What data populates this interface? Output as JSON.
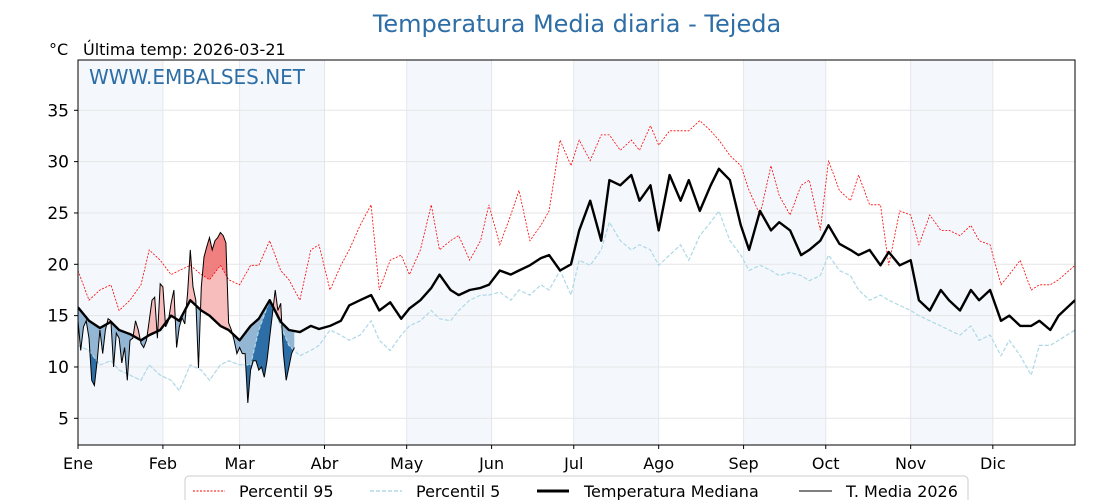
{
  "chart_data": {
    "type": "line",
    "title": "Temperatura Media diaria - Tejeda",
    "ylabel": "°C",
    "subtitle": "Última temp: 2026-03-21",
    "watermark": "WWW.EMBALSES.NET",
    "xlim": [
      1,
      365
    ],
    "ylim": [
      2.4,
      39.9
    ],
    "grid": true,
    "yticks": [
      5,
      10,
      15,
      20,
      25,
      30,
      35
    ],
    "month_ticks": [
      {
        "label": "Ene",
        "day": 1
      },
      {
        "label": "Feb",
        "day": 32
      },
      {
        "label": "Mar",
        "day": 60
      },
      {
        "label": "Abr",
        "day": 91
      },
      {
        "label": "May",
        "day": 121
      },
      {
        "label": "Jun",
        "day": 152
      },
      {
        "label": "Jul",
        "day": 182
      },
      {
        "label": "Ago",
        "day": 213
      },
      {
        "label": "Sep",
        "day": 244
      },
      {
        "label": "Oct",
        "day": 274
      },
      {
        "label": "Nov",
        "day": 305
      },
      {
        "label": "Dic",
        "day": 335
      }
    ],
    "legend_position": "bottom-center",
    "legend": [
      "Percentil 95",
      "Percentil 5",
      "Temperatura Mediana",
      "T. Media 2026"
    ],
    "x": [
      1,
      5,
      9,
      13,
      16,
      20,
      24,
      27,
      31,
      35,
      38,
      42,
      46,
      49,
      53,
      56,
      60,
      64,
      67,
      71,
      75,
      78,
      82,
      86,
      89,
      93,
      97,
      100,
      104,
      108,
      111,
      115,
      119,
      122,
      126,
      130,
      133,
      137,
      140,
      144,
      148,
      151,
      155,
      159,
      162,
      166,
      170,
      173,
      177,
      181,
      184,
      188,
      192,
      195,
      199,
      203,
      206,
      210,
      213,
      217,
      221,
      224,
      228,
      232,
      235,
      239,
      243,
      246,
      250,
      254,
      257,
      261,
      265,
      268,
      272,
      275,
      279,
      283,
      286,
      290,
      294,
      297,
      301,
      305,
      308,
      312,
      316,
      319,
      323,
      327,
      330,
      334,
      338,
      341,
      345,
      349,
      352,
      356,
      359,
      365
    ],
    "series": [
      {
        "name": "Percentil 95",
        "color": "#ff0000",
        "values": [
          19.4,
          16.5,
          17.5,
          18,
          15.5,
          16.5,
          18,
          21.4,
          20.4,
          19,
          19.4,
          19.9,
          19,
          18.5,
          19.9,
          18.5,
          18,
          19.9,
          19.9,
          22.3,
          19.4,
          18.5,
          16.5,
          21.4,
          21.9,
          17.5,
          19.9,
          21.4,
          23.8,
          25.8,
          17.5,
          20.4,
          20.9,
          19,
          21.4,
          25.8,
          21.4,
          22.3,
          22.8,
          20.4,
          22.3,
          25.8,
          21.9,
          24.8,
          27.2,
          22.3,
          23.8,
          25.2,
          32.1,
          29.6,
          32.1,
          30.1,
          32.6,
          32.6,
          31.1,
          32.1,
          31.1,
          33.5,
          31.6,
          33,
          33,
          33,
          34,
          33,
          32.1,
          30.6,
          29.6,
          27.2,
          24.8,
          29.6,
          26.7,
          24.8,
          27.7,
          28.2,
          23.3,
          30.1,
          27.2,
          26.2,
          28.7,
          25.8,
          25.8,
          19.9,
          25.2,
          24.8,
          21.9,
          24.8,
          23.3,
          23.3,
          22.8,
          23.8,
          22.3,
          21.9,
          18,
          19,
          20.4,
          17.5,
          18,
          18,
          18.5,
          19.9
        ]
      },
      {
        "name": "Percentil 5",
        "color": "#add8e6",
        "values": [
          12.1,
          11.6,
          10.2,
          10.6,
          9.7,
          9.2,
          8.7,
          10.2,
          9.2,
          8.7,
          7.7,
          10.2,
          9.7,
          8.7,
          10.2,
          10.6,
          10.2,
          10.2,
          13.6,
          16.5,
          14,
          12.1,
          11.1,
          11.6,
          12.1,
          13.6,
          13.1,
          12.6,
          13.1,
          14.5,
          12.6,
          11.6,
          13.1,
          14,
          14.5,
          15.5,
          14.7,
          14.5,
          15.5,
          16.5,
          17,
          17,
          17.3,
          16.5,
          17.5,
          17,
          18,
          17.5,
          19.4,
          17,
          20.4,
          19.9,
          21.4,
          24.1,
          22.3,
          21.4,
          21.9,
          21.4,
          19.9,
          20.9,
          21.9,
          20.4,
          22.8,
          24.1,
          25.2,
          22.3,
          20.9,
          19.4,
          19.9,
          19.4,
          18.9,
          19.2,
          18.9,
          18.4,
          18.9,
          20.9,
          19.4,
          18.9,
          17.5,
          16.5,
          17,
          16.5,
          16,
          15.5,
          15,
          14.5,
          14,
          13.6,
          13.1,
          14,
          12.6,
          13.1,
          11.1,
          12.6,
          11.1,
          9.2,
          12.1,
          12.1,
          12.6,
          13.6
        ]
      },
      {
        "name": "Temperatura Mediana",
        "color": "#000000",
        "values": [
          15.8,
          14.5,
          13.8,
          14.4,
          13.6,
          13.2,
          12.6,
          13.1,
          13.6,
          15,
          14.5,
          16.5,
          15.5,
          15,
          14,
          13.6,
          12.6,
          14,
          14.7,
          16.5,
          14.4,
          13.6,
          13.4,
          14,
          13.7,
          14,
          14.5,
          16,
          16.5,
          17,
          15.5,
          16.3,
          14.7,
          15.7,
          16.5,
          17.7,
          19,
          17.5,
          17,
          17.5,
          17.7,
          18,
          19.4,
          19,
          19.4,
          19.9,
          20.6,
          20.9,
          19.4,
          20,
          23.3,
          26.2,
          22.3,
          28.2,
          27.7,
          28.7,
          26.2,
          27.7,
          23.3,
          28.7,
          26.2,
          28.2,
          25.2,
          27.7,
          29.3,
          28.2,
          23.8,
          21.4,
          25.2,
          23.3,
          24.1,
          23.3,
          20.9,
          21.4,
          22.3,
          23.8,
          22,
          21.4,
          20.9,
          21.4,
          19.9,
          21.2,
          19.9,
          20.4,
          16.5,
          15.5,
          17.5,
          16.5,
          15.5,
          17.5,
          16.5,
          17.5,
          14.5,
          15,
          14,
          14,
          14.5,
          13.6,
          15,
          16.5
        ]
      }
    ],
    "current_year": {
      "name": "T. Media 2026",
      "color": "#000000",
      "start_day": 1,
      "values": [
        14.5,
        11.6,
        13.9,
        14.5,
        12.8,
        8.7,
        8.2,
        10.6,
        13.6,
        11.3,
        13.6,
        14.7,
        14.5,
        10,
        13.3,
        12.8,
        10.4,
        11.9,
        8.7,
        12.6,
        12.8,
        14.5,
        13.6,
        12.3,
        11.9,
        12.6,
        14.5,
        16.5,
        16.8,
        12.8,
        18.1,
        17.8,
        13.9,
        14.5,
        16.2,
        17.5,
        11.9,
        13.9,
        14.8,
        14.2,
        17.2,
        21.4,
        17.8,
        16.5,
        9.9,
        17.8,
        20.7,
        21.7,
        22.6,
        21.4,
        22.3,
        22.6,
        23.1,
        22.8,
        22.1,
        14.3,
        13.6,
        12.6,
        11.3,
        11.9,
        11.3,
        11.3,
        6.5,
        9.7,
        10.6,
        10.6,
        9.7,
        10,
        9,
        10.6,
        12.9,
        15.2,
        17.5,
        15.5,
        16.2,
        11.3,
        8.7,
        10,
        11.3,
        11.9
      ]
    },
    "fill_colors": {
      "above_median": "#f7bcbc",
      "above_p95": "#f08080",
      "below_median": "#94b6d5",
      "below_p5": "#2e6ea6"
    },
    "month_band_color": "#f4f8fc",
    "title_color": "#2e6ea6"
  }
}
